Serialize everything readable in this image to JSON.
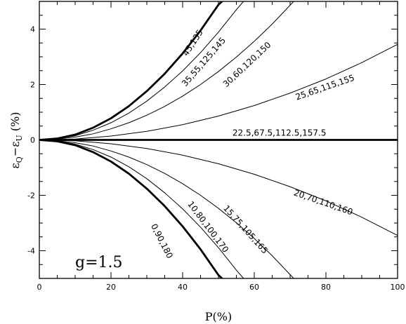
{
  "chart_data": {
    "type": "line",
    "title": "",
    "xlabel": "P(%)",
    "ylabel": "εQ−εU (%)",
    "ylabel_parts": {
      "base1": "ε",
      "sub1": "Q",
      "minus": "−",
      "base2": "ε",
      "sub2": "U",
      "unit": "(%)"
    },
    "xlim": [
      0,
      100
    ],
    "ylim": [
      -5,
      5
    ],
    "x_ticks": [
      "0",
      "20",
      "40",
      "60",
      "80",
      "100"
    ],
    "y_ticks": [
      "-4",
      "-2",
      "0",
      "2",
      "4"
    ],
    "annotation": "g=1.5",
    "series": [
      {
        "label": "45,135",
        "bold": true,
        "x": [
          0,
          5,
          10,
          15,
          20,
          25,
          30,
          35,
          40,
          45,
          50,
          51
        ],
        "y": [
          0,
          0.05,
          0.19,
          0.44,
          0.78,
          1.22,
          1.76,
          2.39,
          3.12,
          3.95,
          4.88,
          5.0
        ]
      },
      {
        "label": "35,55,125,145",
        "bold": false,
        "x": [
          0,
          5,
          10,
          15,
          20,
          25,
          30,
          35,
          40,
          45,
          50,
          55,
          57
        ],
        "y": [
          0,
          0.04,
          0.15,
          0.35,
          0.62,
          0.97,
          1.4,
          1.91,
          2.49,
          3.15,
          3.89,
          4.7,
          5.0
        ]
      },
      {
        "label": "30,60,120,150",
        "bold": false,
        "x": [
          0,
          5,
          10,
          15,
          20,
          25,
          30,
          35,
          40,
          45,
          50,
          55,
          60,
          65,
          71
        ],
        "y": [
          0,
          0.03,
          0.1,
          0.22,
          0.4,
          0.62,
          0.89,
          1.21,
          1.58,
          2.0,
          2.47,
          2.99,
          3.56,
          4.18,
          5.0
        ]
      },
      {
        "label": "25,65,115,155",
        "bold": false,
        "x": [
          0,
          10,
          20,
          30,
          40,
          50,
          60,
          70,
          80,
          90,
          100
        ],
        "y": [
          0,
          0.03,
          0.14,
          0.31,
          0.55,
          0.86,
          1.24,
          1.69,
          2.2,
          2.79,
          3.45
        ]
      },
      {
        "label": "22.5,67.5,112.5,157.5",
        "bold": true,
        "x": [
          0,
          100
        ],
        "y": [
          0,
          0
        ]
      },
      {
        "label": "20,70,110,160",
        "bold": false,
        "x": [
          0,
          10,
          20,
          30,
          40,
          50,
          60,
          70,
          80,
          90,
          100
        ],
        "y": [
          0,
          -0.03,
          -0.14,
          -0.31,
          -0.55,
          -0.86,
          -1.24,
          -1.69,
          -2.2,
          -2.79,
          -3.45
        ]
      },
      {
        "label": "15,75,105,165",
        "bold": false,
        "x": [
          0,
          5,
          10,
          15,
          20,
          25,
          30,
          35,
          40,
          45,
          50,
          55,
          60,
          65,
          71
        ],
        "y": [
          0,
          -0.03,
          -0.1,
          -0.22,
          -0.4,
          -0.62,
          -0.89,
          -1.21,
          -1.58,
          -2.0,
          -2.47,
          -2.99,
          -3.56,
          -4.18,
          -5.0
        ]
      },
      {
        "label": "10,80,100,170",
        "bold": false,
        "x": [
          0,
          5,
          10,
          15,
          20,
          25,
          30,
          35,
          40,
          45,
          50,
          55,
          57
        ],
        "y": [
          0,
          -0.04,
          -0.15,
          -0.35,
          -0.62,
          -0.97,
          -1.4,
          -1.91,
          -2.49,
          -3.15,
          -3.89,
          -4.7,
          -5.0
        ]
      },
      {
        "label": "0,90,180",
        "bold": true,
        "x": [
          0,
          5,
          10,
          15,
          20,
          25,
          30,
          35,
          40,
          45,
          50,
          51
        ],
        "y": [
          0,
          -0.05,
          -0.19,
          -0.44,
          -0.78,
          -1.22,
          -1.76,
          -2.39,
          -3.12,
          -3.95,
          -4.88,
          -5.0
        ]
      }
    ]
  }
}
